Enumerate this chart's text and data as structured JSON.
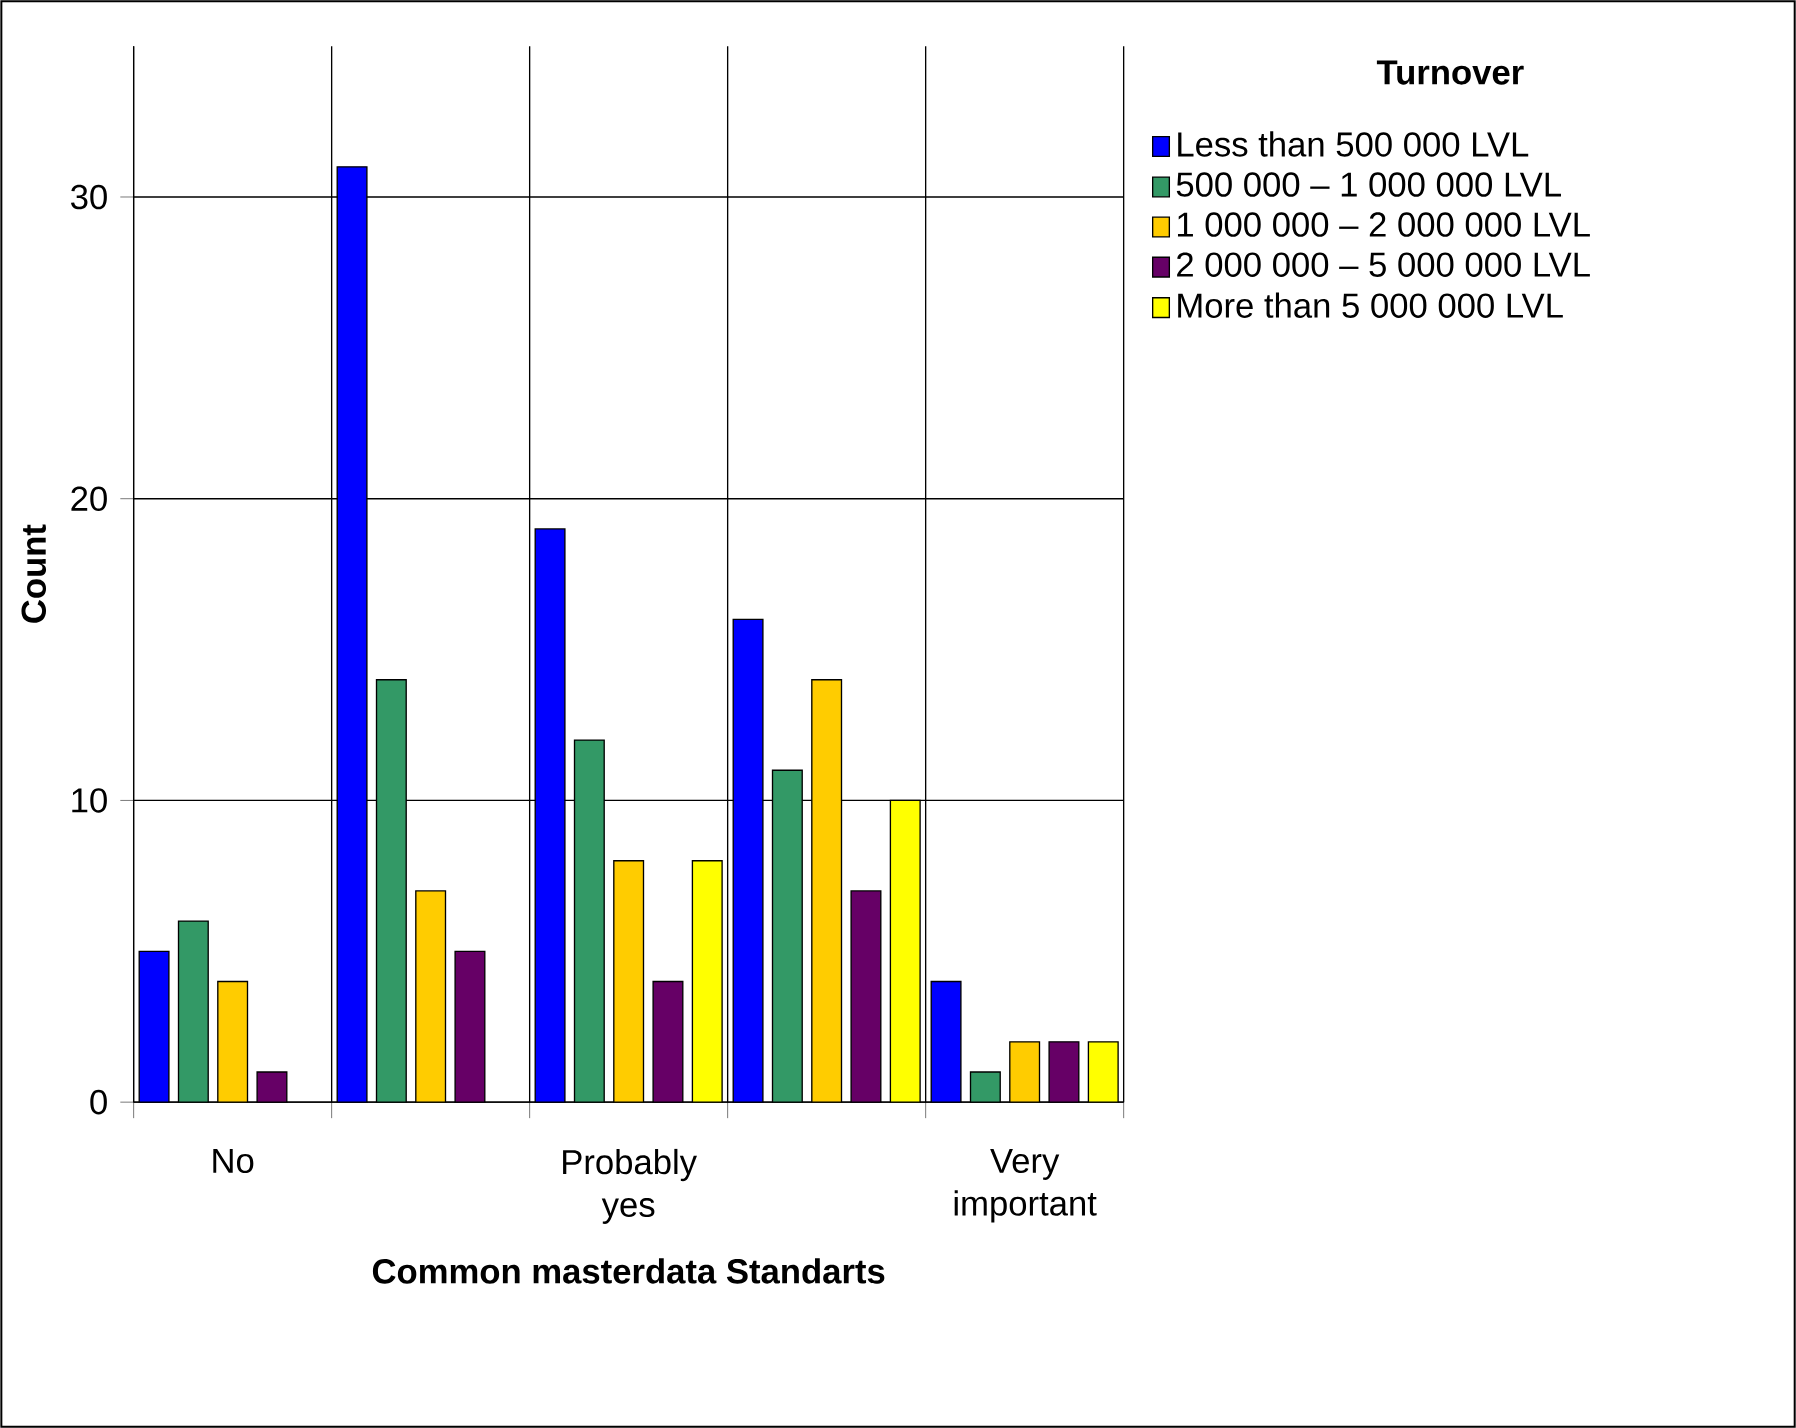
{
  "chart_data": {
    "type": "bar",
    "xlabel": "Common masterdata Standarts",
    "ylabel": "Count",
    "legend_title": "Turnover",
    "categories": [
      "No",
      null,
      "Probably yes",
      null,
      "Very important"
    ],
    "series": [
      {
        "name": "Less than 500 000 LVL",
        "color": "#0000ff",
        "values": [
          5,
          31,
          19,
          16,
          4
        ]
      },
      {
        "name": "500 000 – 1 000 000 LVL",
        "color": "#339966",
        "values": [
          6,
          14,
          12,
          11,
          1
        ]
      },
      {
        "name": "1 000 000 – 2 000 000 LVL",
        "color": "#ffcc00",
        "values": [
          4,
          7,
          8,
          14,
          2
        ]
      },
      {
        "name": "2 000 000 – 5 000 000 LVL",
        "color": "#660066",
        "values": [
          1,
          5,
          4,
          7,
          2
        ]
      },
      {
        "name": "More than 5 000 000 LVL",
        "color": "#ffff00",
        "values": [
          null,
          null,
          8,
          10,
          2
        ]
      }
    ],
    "ylim": [
      0,
      35
    ],
    "yticks": [
      0,
      10,
      20,
      30
    ],
    "grid": true,
    "legend": "right"
  }
}
